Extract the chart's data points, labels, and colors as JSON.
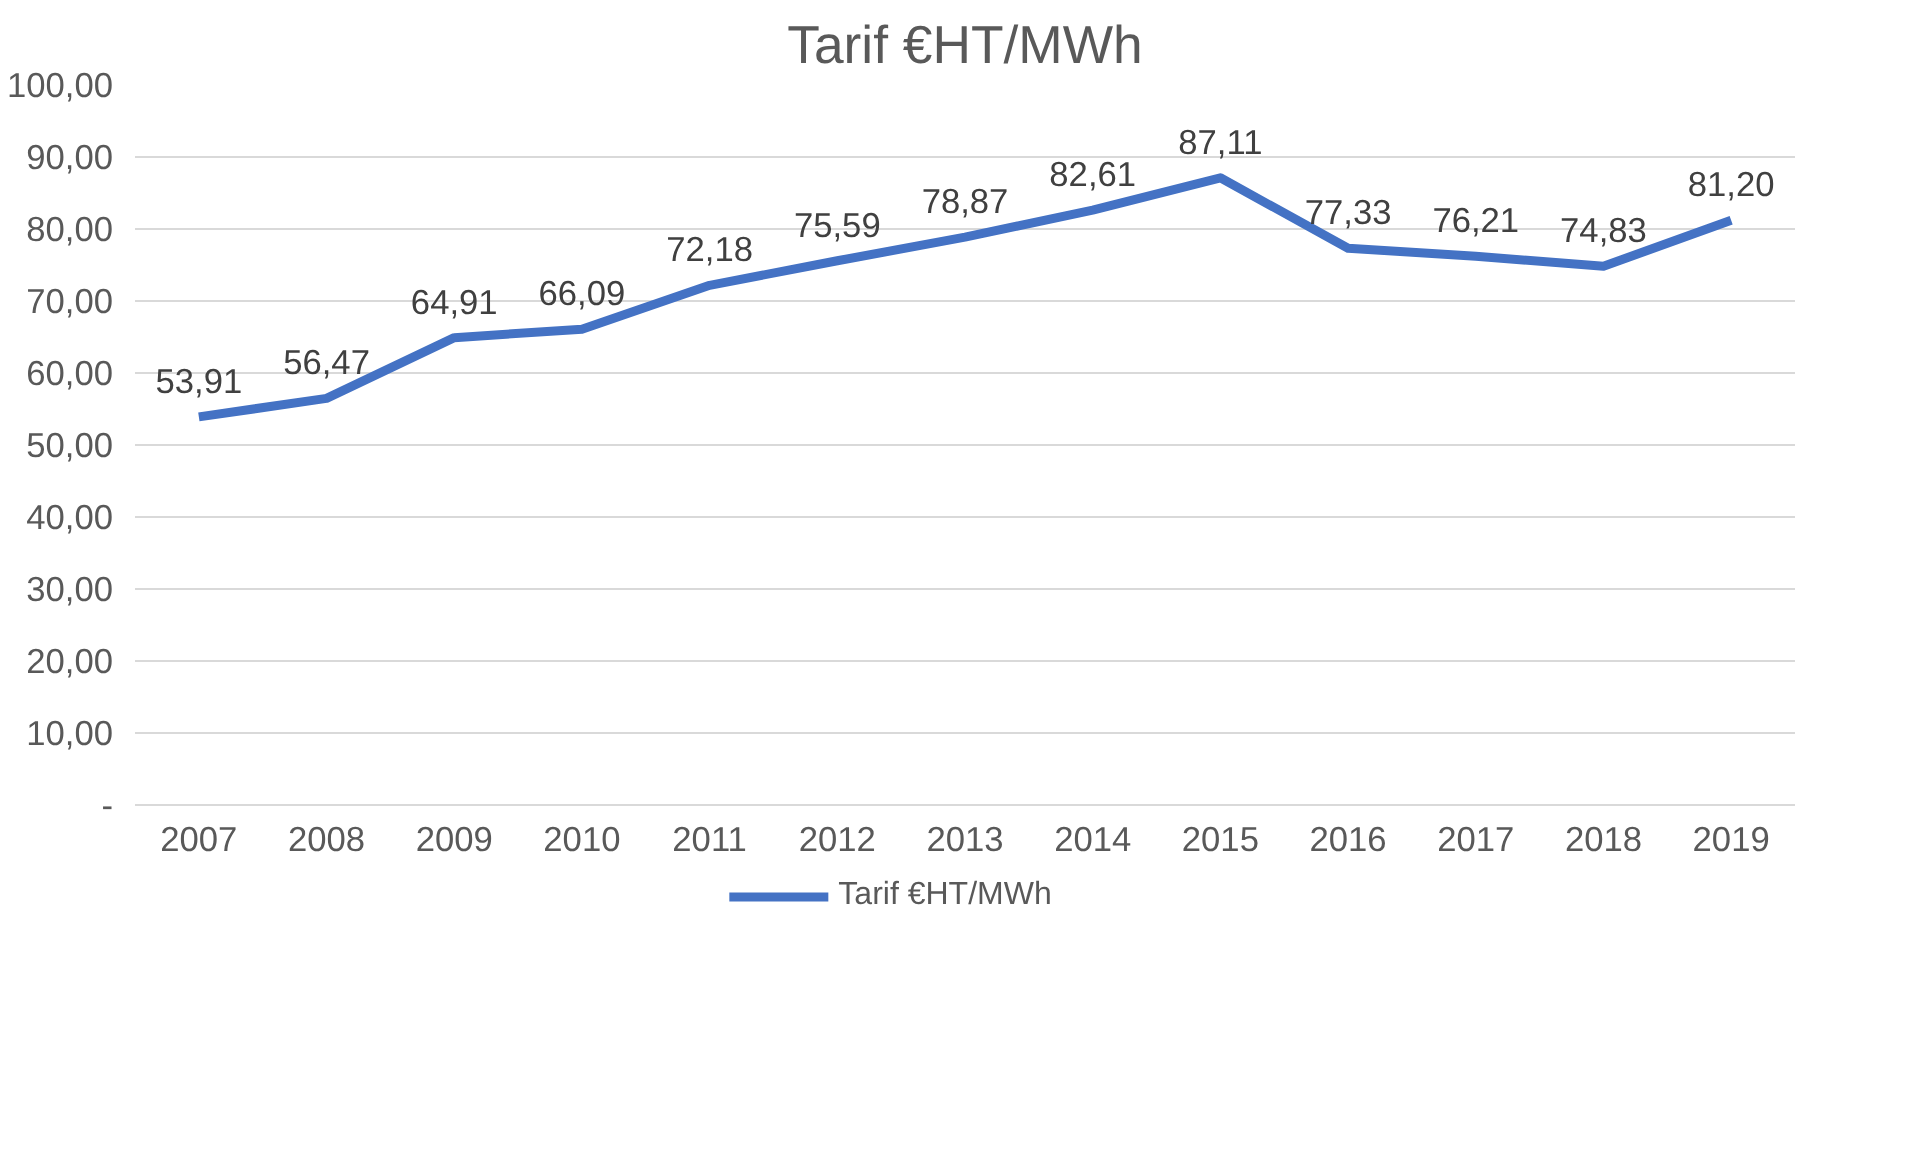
{
  "chart_data": {
    "type": "line",
    "title": "Tarif €HT/MWh",
    "categories": [
      "2007",
      "2008",
      "2009",
      "2010",
      "2011",
      "2012",
      "2013",
      "2014",
      "2015",
      "2016",
      "2017",
      "2018",
      "2019"
    ],
    "series": [
      {
        "name": "Tarif €HT/MWh",
        "color": "#4472c4",
        "values": [
          53.91,
          56.47,
          64.91,
          66.09,
          72.18,
          75.59,
          78.87,
          82.61,
          87.11,
          77.33,
          76.21,
          74.83,
          81.2
        ],
        "value_labels": [
          "53,91",
          "56,47",
          "64,91",
          "66,09",
          "72,18",
          "75,59",
          "78,87",
          "82,61",
          "87,11",
          "77,33",
          "76,21",
          "74,83",
          "81,20"
        ]
      }
    ],
    "ylim": [
      0,
      100
    ],
    "yticks": [
      {
        "value": 0,
        "label": "-"
      },
      {
        "value": 10,
        "label": "10,00"
      },
      {
        "value": 20,
        "label": "20,00"
      },
      {
        "value": 30,
        "label": "30,00"
      },
      {
        "value": 40,
        "label": "40,00"
      },
      {
        "value": 50,
        "label": "50,00"
      },
      {
        "value": 60,
        "label": "60,00"
      },
      {
        "value": 70,
        "label": "70,00"
      },
      {
        "value": 80,
        "label": "80,00"
      },
      {
        "value": 90,
        "label": "90,00"
      },
      {
        "value": 100,
        "label": "100,00"
      }
    ],
    "grid": "y",
    "legend": "bottom",
    "line_style": "solid",
    "marker": "none"
  }
}
